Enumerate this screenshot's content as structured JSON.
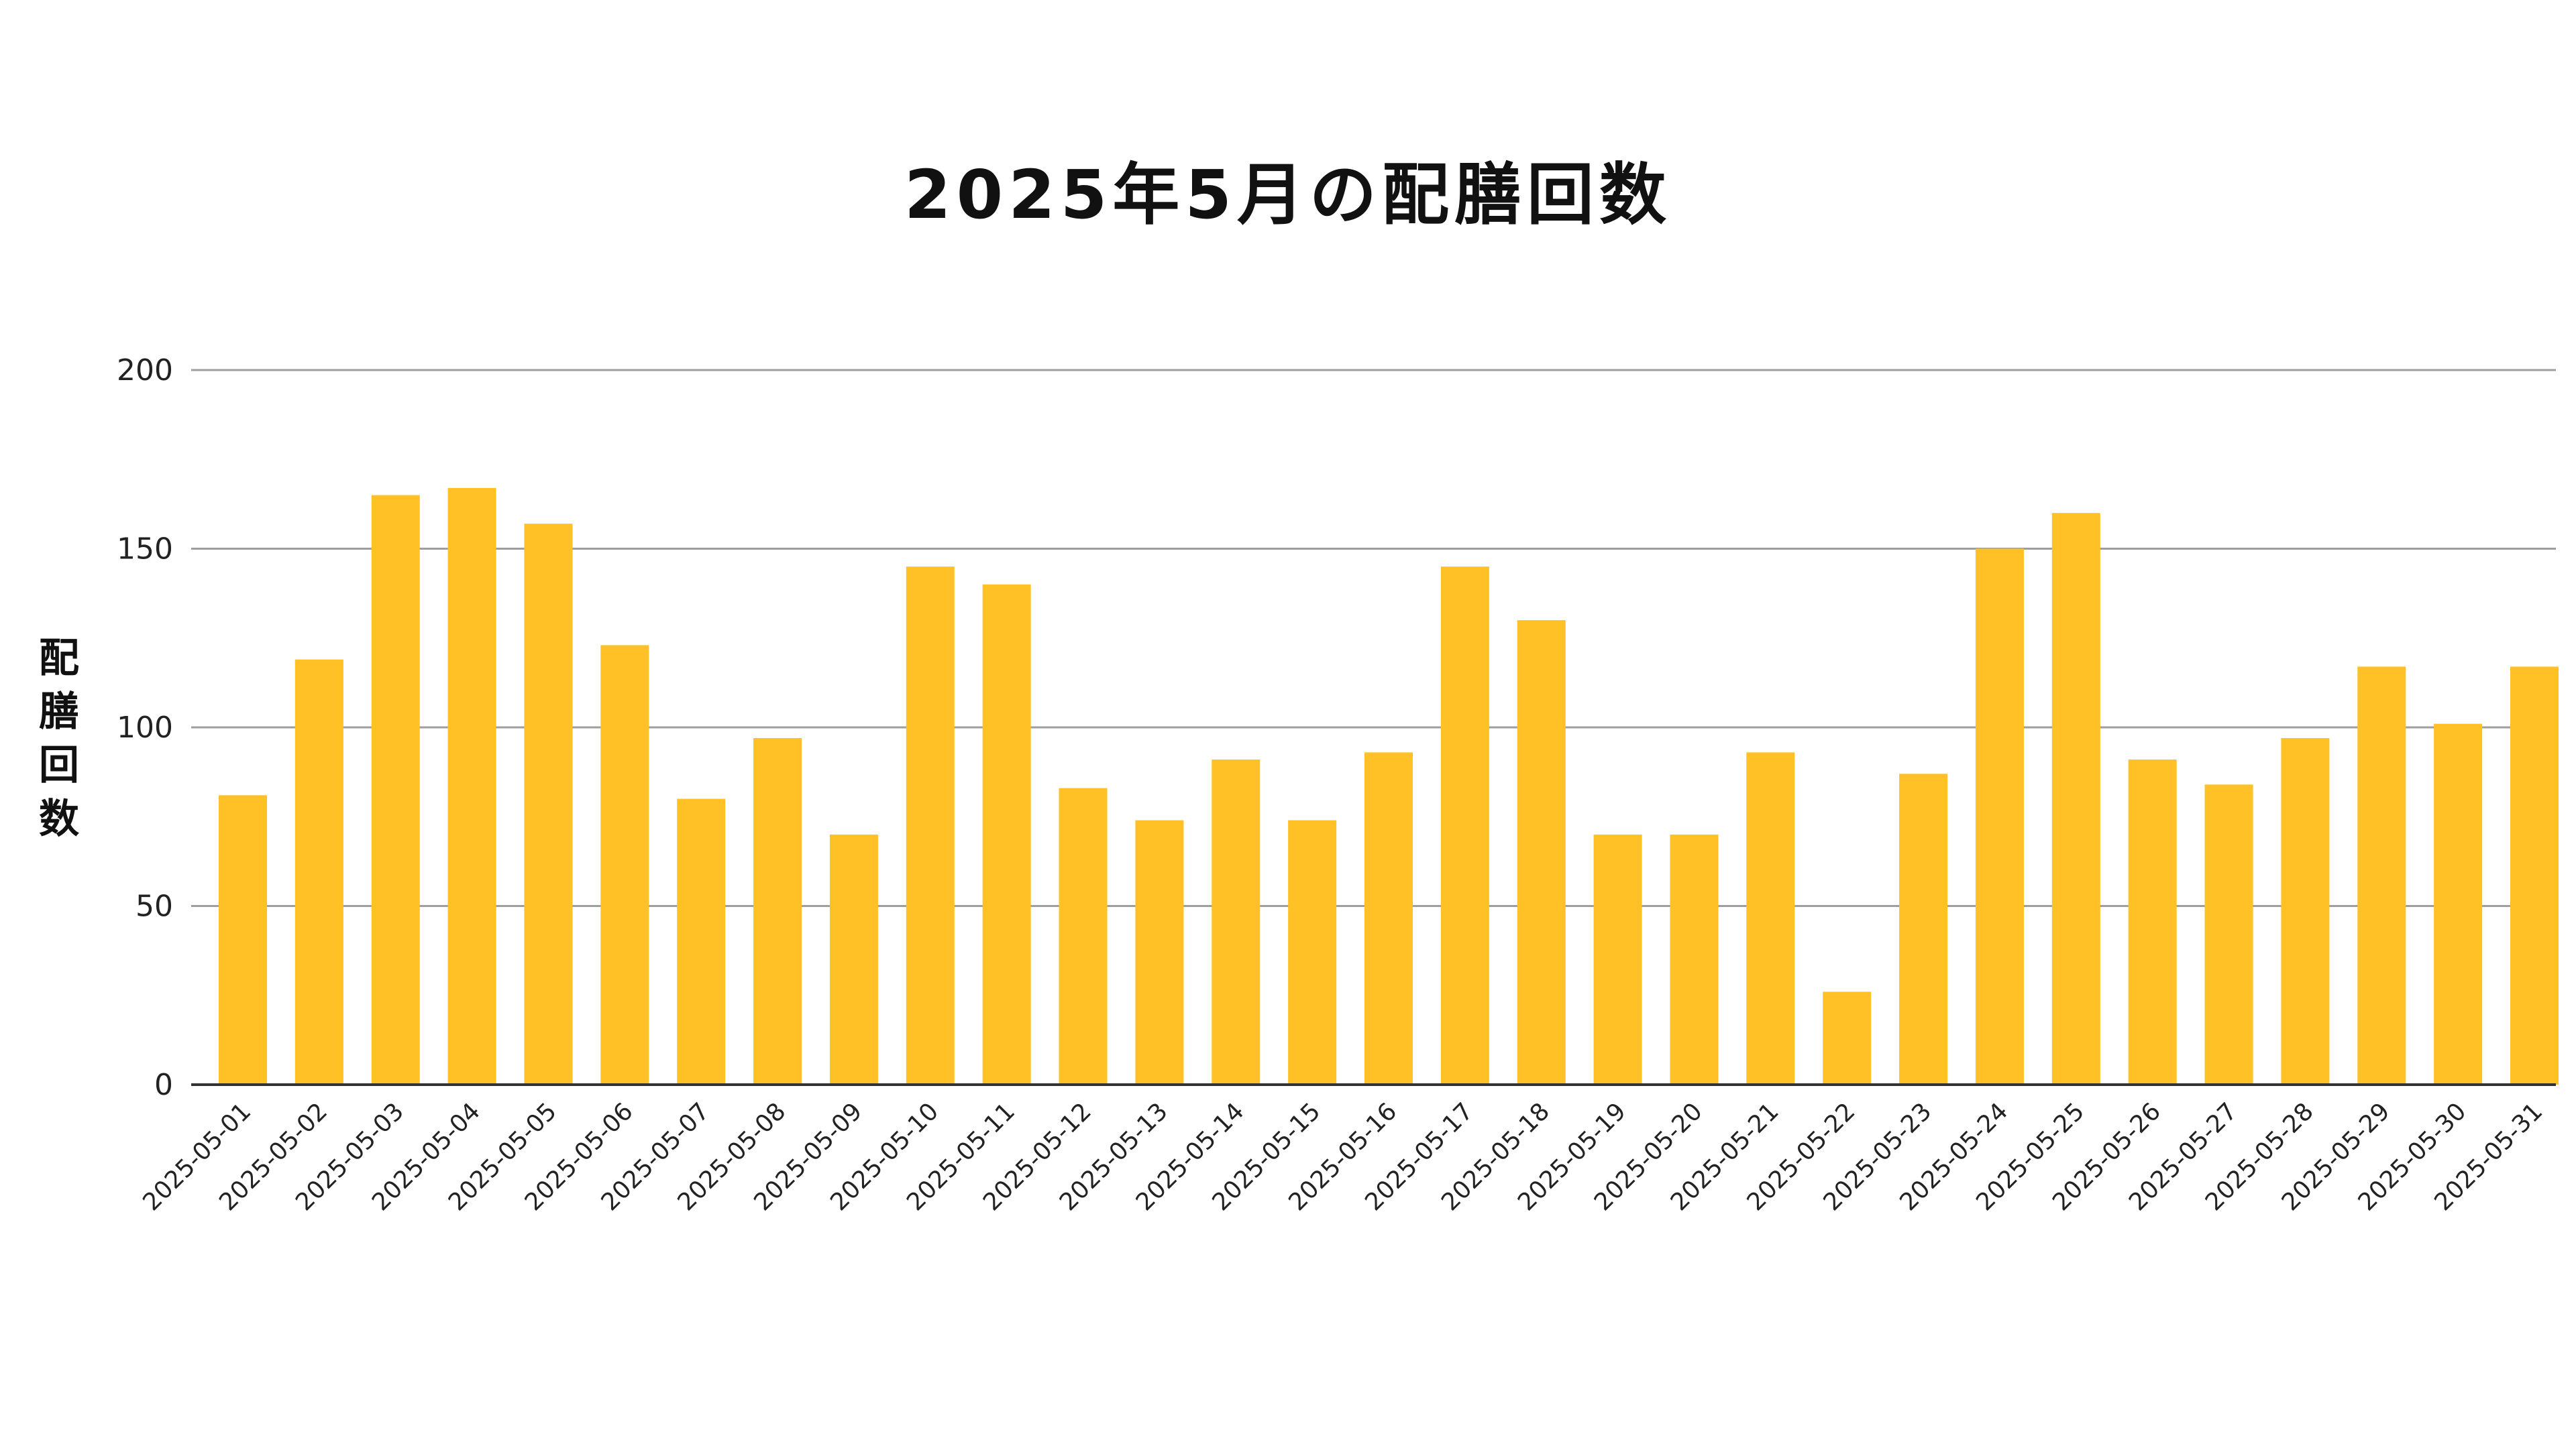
{
  "chart_data": {
    "type": "bar",
    "title": "2025年5月の配膳回数",
    "xlabel": "",
    "ylabel": "配膳回数",
    "ylim": [
      0,
      200
    ],
    "yticks": [
      "0",
      "50",
      "100",
      "150",
      "200"
    ],
    "grid": true,
    "bar_color": "#FFC125",
    "categories": [
      "2025-05-01",
      "2025-05-02",
      "2025-05-03",
      "2025-05-04",
      "2025-05-05",
      "2025-05-06",
      "2025-05-07",
      "2025-05-08",
      "2025-05-09",
      "2025-05-10",
      "2025-05-11",
      "2025-05-12",
      "2025-05-13",
      "2025-05-14",
      "2025-05-15",
      "2025-05-16",
      "2025-05-17",
      "2025-05-18",
      "2025-05-19",
      "2025-05-20",
      "2025-05-21",
      "2025-05-22",
      "2025-05-23",
      "2025-05-24",
      "2025-05-25",
      "2025-05-26",
      "2025-05-27",
      "2025-05-28",
      "2025-05-29",
      "2025-05-30",
      "2025-05-31"
    ],
    "values": [
      81,
      119,
      165,
      167,
      157,
      123,
      80,
      97,
      70,
      145,
      140,
      83,
      74,
      91,
      74,
      93,
      145,
      130,
      70,
      70,
      93,
      26,
      87,
      150,
      160,
      91,
      84,
      97,
      117,
      101,
      117
    ]
  }
}
